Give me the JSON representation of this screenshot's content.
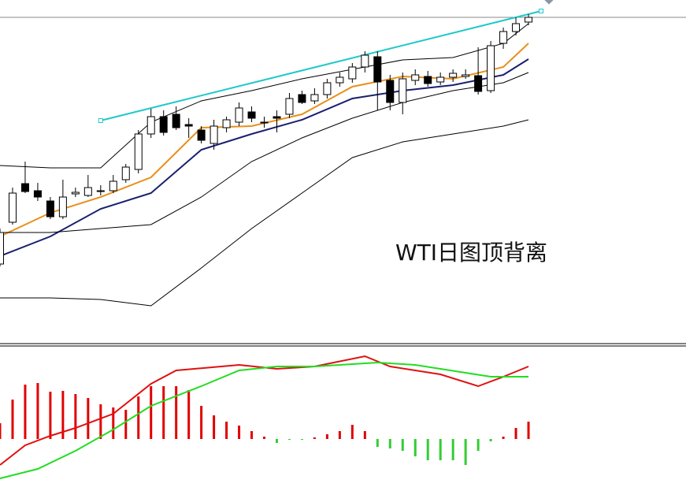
{
  "chart_data": [
    {
      "type": "candlestick",
      "annotation": "WTI日图顶背离",
      "xlim": [
        0,
        43
      ],
      "ylim": [
        0,
        435
      ],
      "open": [
        100,
        153,
        202,
        193,
        180,
        160,
        189,
        187,
        192,
        193,
        207,
        220,
        265,
        287,
        290,
        277,
        270,
        253,
        273,
        280,
        293,
        280,
        287,
        290,
        315,
        307,
        315,
        330,
        335,
        350,
        363,
        333,
        305,
        333,
        338,
        331,
        337,
        338,
        339,
        320,
        380,
        395,
        407
      ],
      "close": [
        140,
        190,
        192,
        185,
        160,
        185,
        191,
        197,
        193,
        205,
        223,
        265,
        287,
        267,
        273,
        275,
        257,
        275,
        283,
        298,
        285,
        280,
        285,
        310,
        305,
        315,
        330,
        337,
        350,
        365,
        331,
        305,
        335,
        340,
        329,
        337,
        342,
        340,
        319,
        377,
        395,
        405,
        413
      ],
      "high": [
        145,
        197,
        230,
        203,
        185,
        207,
        197,
        213,
        200,
        213,
        227,
        270,
        297,
        295,
        300,
        285,
        275,
        283,
        287,
        305,
        300,
        287,
        295,
        317,
        320,
        323,
        335,
        343,
        355,
        370,
        370,
        340,
        343,
        347,
        345,
        343,
        347,
        347,
        375,
        383,
        400,
        413,
        417
      ],
      "low": [
        97,
        150,
        190,
        180,
        157,
        157,
        185,
        185,
        187,
        190,
        203,
        215,
        260,
        263,
        270,
        260,
        253,
        245,
        267,
        275,
        280,
        273,
        267,
        285,
        303,
        303,
        310,
        325,
        330,
        343,
        295,
        295,
        290,
        327,
        325,
        327,
        331,
        335,
        315,
        317,
        373,
        390,
        403
      ],
      "up_color": "#ffffff",
      "down_color": "#000000",
      "series": [
        {
          "color": "#000000",
          "x": [
            0,
            4,
            8,
            12,
            16,
            20,
            24,
            28,
            32,
            36,
            40,
            42
          ],
          "values": [
            225,
            222,
            222,
            280,
            307,
            320,
            335,
            347,
            359,
            362,
            380,
            405
          ]
        },
        {
          "color": "#e8901c",
          "x": [
            0,
            4,
            8,
            12,
            16,
            20,
            24,
            28,
            32,
            36,
            40,
            42
          ],
          "values": [
            135,
            165,
            185,
            210,
            273,
            275,
            290,
            325,
            338,
            335,
            350,
            380
          ]
        },
        {
          "color": "#1a1f6e",
          "x": [
            0,
            4,
            8,
            12,
            16,
            20,
            24,
            28,
            32,
            36,
            40,
            42
          ],
          "values": [
            110,
            135,
            170,
            190,
            245,
            265,
            283,
            310,
            320,
            327,
            340,
            360
          ]
        },
        {
          "color": "#000000",
          "x": [
            0,
            4,
            8,
            12,
            16,
            20,
            24,
            28,
            32,
            36,
            40,
            42
          ],
          "values": [
            140,
            140,
            145,
            150,
            185,
            230,
            260,
            285,
            305,
            320,
            330,
            343
          ]
        },
        {
          "color": "#000000",
          "x": [
            0,
            4,
            8,
            12,
            16,
            20,
            24,
            28,
            32,
            36,
            40,
            42
          ],
          "values": [
            57,
            57,
            55,
            47,
            95,
            145,
            190,
            235,
            255,
            265,
            275,
            283
          ]
        },
        {
          "color": "#20c8c8",
          "x": [
            8,
            43
          ],
          "values": [
            282,
            421
          ]
        }
      ]
    },
    {
      "type": "macd",
      "xlim": [
        0,
        43
      ],
      "ylim": [
        -66,
        117
      ],
      "histogram": [
        20,
        50,
        69,
        71,
        60,
        61,
        57,
        52,
        44,
        40,
        37,
        54,
        67,
        67,
        67,
        62,
        42,
        30,
        22,
        17,
        10,
        3,
        -5,
        -1,
        -1,
        2,
        6,
        10,
        18,
        10,
        -10,
        -12,
        -15,
        -22,
        -27,
        -27,
        -27,
        -33,
        -15,
        -3,
        3,
        14,
        22
      ],
      "up_color": "#e00000",
      "down_color": "#33cc33",
      "series": [
        {
          "color": "#e01010",
          "x": [
            0,
            2,
            4,
            6,
            9,
            12,
            14,
            19,
            22,
            25,
            29,
            31,
            35,
            38,
            40,
            42
          ],
          "values": [
            -33,
            -8,
            4,
            14,
            32,
            70,
            87,
            94,
            89,
            92,
            105,
            92,
            82,
            67,
            79,
            92
          ]
        },
        {
          "color": "#22dd22",
          "x": [
            0,
            3,
            6,
            9,
            12,
            16,
            19,
            22,
            25,
            30,
            33,
            37,
            39,
            42
          ],
          "values": [
            -50,
            -38,
            -15,
            12,
            42,
            67,
            87,
            92,
            92,
            97,
            94,
            84,
            79,
            79
          ]
        }
      ]
    }
  ]
}
